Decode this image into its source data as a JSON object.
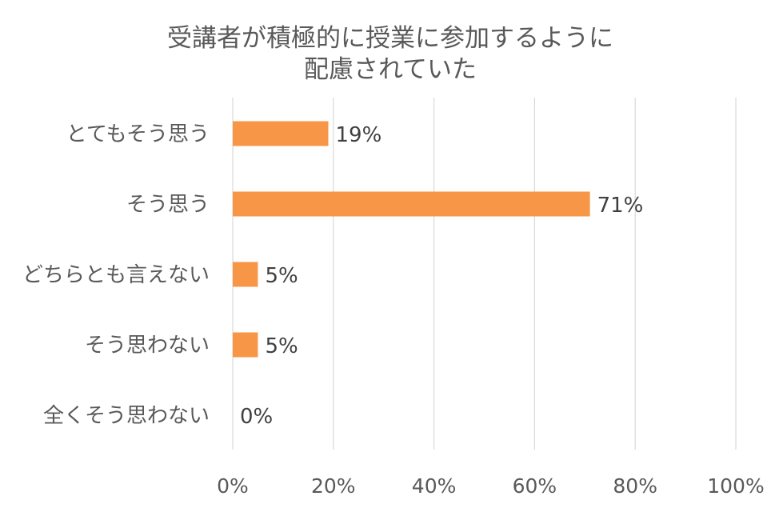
{
  "chart_data": {
    "type": "bar",
    "orientation": "horizontal",
    "title_lines": [
      "受講者が積極的に授業に参加するように",
      "配慮されていた"
    ],
    "categories": [
      "とてもそう思う",
      "そう思う",
      "どちらとも言えない",
      "そう思わない",
      "全くそう思わない"
    ],
    "values": [
      19,
      71,
      5,
      5,
      0
    ],
    "data_labels": [
      "19%",
      "71%",
      "5%",
      "5%",
      "0%"
    ],
    "xlim": [
      0,
      100
    ],
    "x_ticks": [
      0,
      20,
      40,
      60,
      80,
      100
    ],
    "x_tick_labels": [
      "0%",
      "20%",
      "40%",
      "60%",
      "80%",
      "100%"
    ],
    "grid": true,
    "legend": "none",
    "bar_color": "#f79646"
  }
}
